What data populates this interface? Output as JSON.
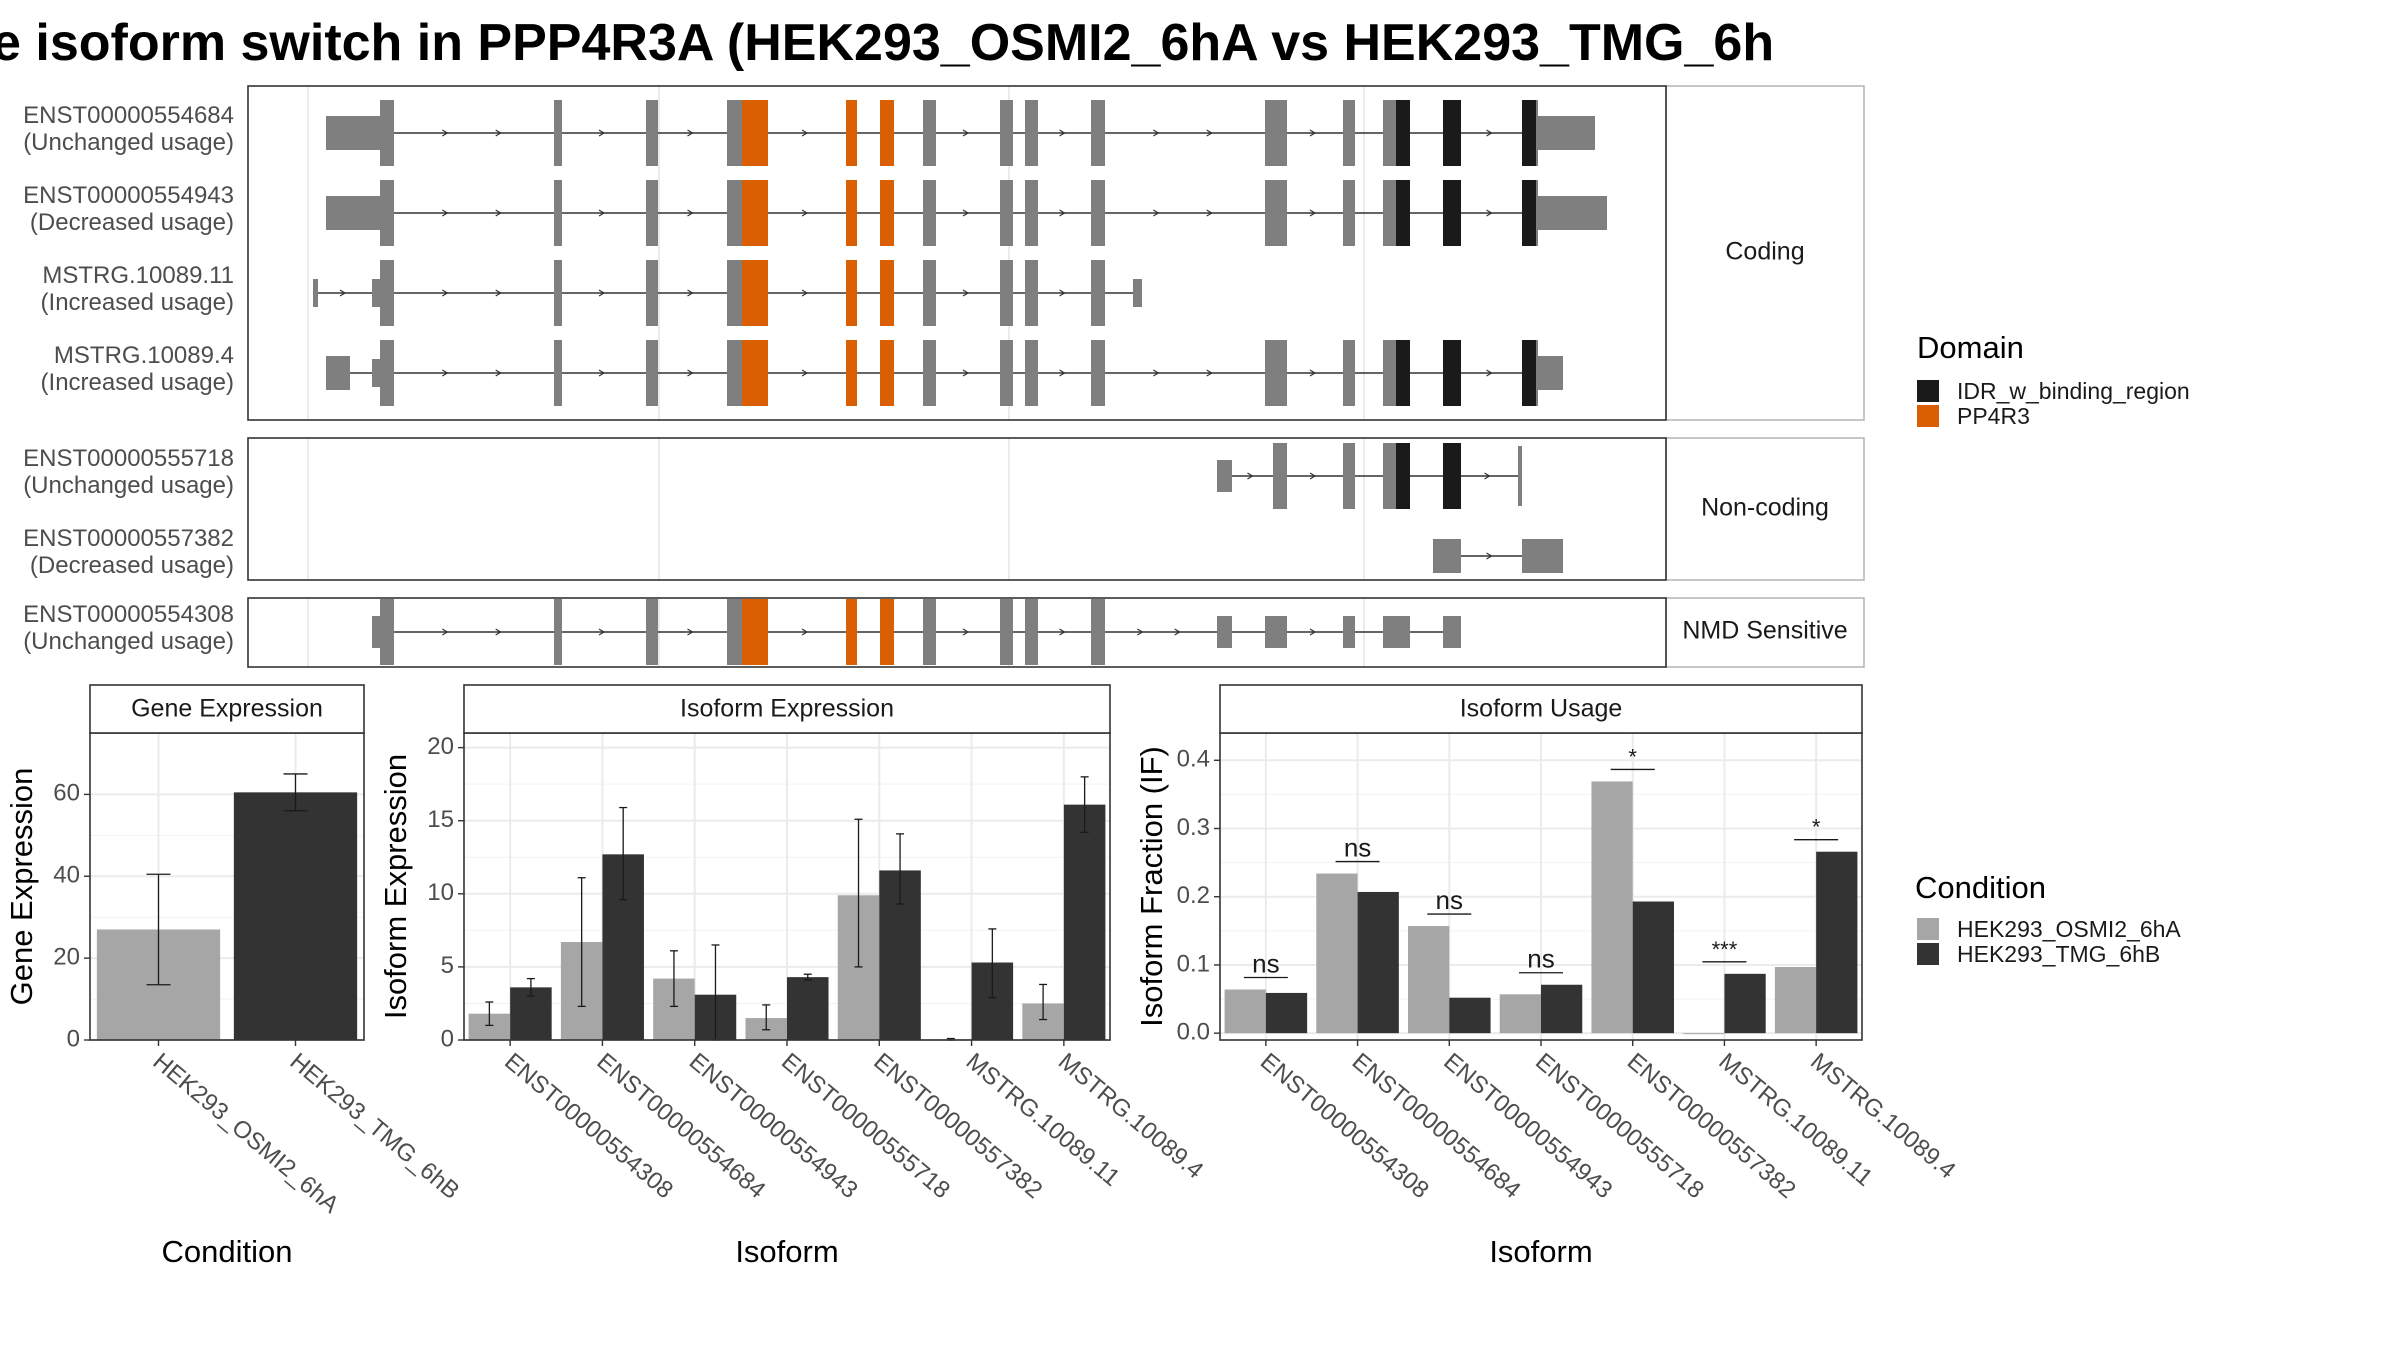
{
  "figure": {
    "title": "e isoform switch in PPP4R3A (HEK293_OSMI2_6hA vs HEK293_TMG_6h"
  },
  "structure": {
    "facets": [
      "Coding",
      "Non-coding",
      "NMD Sensitive"
    ],
    "transcripts": [
      {
        "id": "ENST00000554684",
        "usage": "(Unchanged usage)",
        "group": "Coding"
      },
      {
        "id": "ENST00000554943",
        "usage": "(Decreased usage)",
        "group": "Coding"
      },
      {
        "id": "MSTRG.10089.11",
        "usage": "(Increased usage)",
        "group": "Coding"
      },
      {
        "id": "MSTRG.10089.4",
        "usage": "(Increased usage)",
        "group": "Coding"
      },
      {
        "id": "ENST00000555718",
        "usage": "(Unchanged usage)",
        "group": "Non-coding"
      },
      {
        "id": "ENST00000557382",
        "usage": "(Decreased usage)",
        "group": "Non-coding"
      },
      {
        "id": "ENST00000554308",
        "usage": "(Unchanged usage)",
        "group": "NMD Sensitive"
      }
    ],
    "domain_legend": {
      "title": "Domain",
      "items": [
        {
          "label": "IDR_w_binding_region",
          "color": "#1a1a1a"
        },
        {
          "label": "PP4R3",
          "color": "#d95f02"
        }
      ]
    }
  },
  "chart_data": [
    {
      "type": "bar",
      "panel": "Gene Expression",
      "xlabel": "Condition",
      "ylabel": "Gene Expression",
      "ylim": [
        0,
        75
      ],
      "yticks": [
        0,
        20,
        40,
        60
      ],
      "categories": [
        "HEK293_OSMI2_6hA",
        "HEK293_TMG_6hB"
      ],
      "values": [
        27,
        60.5
      ],
      "error": [
        [
          13.5,
          40.5
        ],
        [
          56,
          65
        ]
      ],
      "colors": [
        "#a6a6a6",
        "#333333"
      ]
    },
    {
      "type": "bar",
      "panel": "Isoform Expression",
      "xlabel": "Isoform",
      "ylabel": "Isoform Expression",
      "ylim": [
        0,
        21
      ],
      "yticks": [
        0,
        5,
        10,
        15,
        20
      ],
      "categories": [
        "ENST00000554308",
        "ENST00000554684",
        "ENST00000554943",
        "ENST00000555718",
        "ENST00000557382",
        "MSTRG.10089.11",
        "MSTRG.10089.4"
      ],
      "series": [
        {
          "name": "HEK293_OSMI2_6hA",
          "values": [
            1.8,
            6.7,
            4.2,
            1.5,
            9.9,
            0.05,
            2.5
          ],
          "error": [
            [
              1.0,
              2.6
            ],
            [
              2.3,
              11.1
            ],
            [
              2.3,
              6.1
            ],
            [
              0.7,
              2.4
            ],
            [
              5.0,
              15.1
            ],
            [
              0.0,
              0.1
            ],
            [
              1.4,
              3.8
            ]
          ]
        },
        {
          "name": "HEK293_TMG_6hB",
          "values": [
            3.6,
            12.7,
            3.1,
            4.3,
            11.6,
            5.3,
            16.1
          ],
          "error": [
            [
              3.0,
              4.2
            ],
            [
              9.6,
              15.9
            ],
            [
              0.0,
              6.5
            ],
            [
              4.1,
              4.5
            ],
            [
              9.3,
              14.1
            ],
            [
              2.9,
              7.6
            ],
            [
              14.2,
              18.0
            ]
          ]
        }
      ]
    },
    {
      "type": "bar",
      "panel": "Isoform Usage",
      "xlabel": "Isoform",
      "ylabel": "Isoform Fraction (IF)",
      "ylim": [
        -0.01,
        0.44
      ],
      "yticks": [
        0.0,
        0.1,
        0.2,
        0.3,
        0.4
      ],
      "ytick_labels": [
        "0.0",
        "0.1",
        "0.2",
        "0.3",
        "0.4"
      ],
      "categories": [
        "ENST00000554308",
        "ENST00000554684",
        "ENST00000554943",
        "ENST00000555718",
        "ENST00000557382",
        "MSTRG.10089.11",
        "MSTRG.10089.4"
      ],
      "series": [
        {
          "name": "HEK293_OSMI2_6hA",
          "values": [
            0.064,
            0.234,
            0.157,
            0.057,
            0.369,
            0.0,
            0.097
          ]
        },
        {
          "name": "HEK293_TMG_6hB",
          "values": [
            0.059,
            0.207,
            0.052,
            0.071,
            0.193,
            0.087,
            0.266
          ]
        }
      ],
      "significance": [
        "ns",
        "ns",
        "ns",
        "ns",
        "*",
        "***",
        "*"
      ]
    }
  ],
  "condition_legend": {
    "title": "Condition",
    "items": [
      {
        "label": "HEK293_OSMI2_6hA",
        "color": "#a6a6a6"
      },
      {
        "label": "HEK293_TMG_6hB",
        "color": "#333333"
      }
    ]
  }
}
